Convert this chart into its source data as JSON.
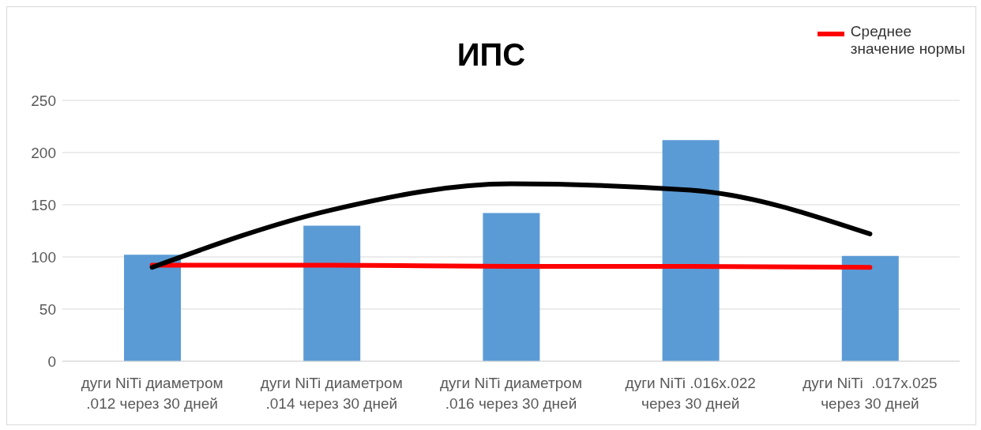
{
  "chart_data": {
    "type": "bar",
    "title": "ИПС",
    "categories": [
      "дуги NiTi диаметром .012 через 30 дней",
      "дуги NiTi диаметром .014 через 30 дней",
      "дуги NiTi диаметром .016 через 30 дней",
      "дуги NiTi .016x.022 через 30 дней",
      "дуги NiTi  .017x.025 через 30 дней"
    ],
    "series": [
      {
        "color": "#5b9bd5",
        "values": [
          102,
          130,
          142,
          212,
          101
        ]
      },
      {
        "type": "line",
        "name": "Среднее значение нормы",
        "color": "#ff0000",
        "values": [
          92,
          92,
          91,
          91,
          90
        ]
      },
      {
        "type": "line",
        "color": "#000000",
        "values": [
          90,
          145,
          170,
          164,
          122
        ]
      }
    ],
    "ylim": [
      0,
      250
    ],
    "yticks": [
      0,
      50,
      100,
      150,
      200,
      250
    ],
    "grid": "y",
    "legend": "top right",
    "marker": "none"
  }
}
